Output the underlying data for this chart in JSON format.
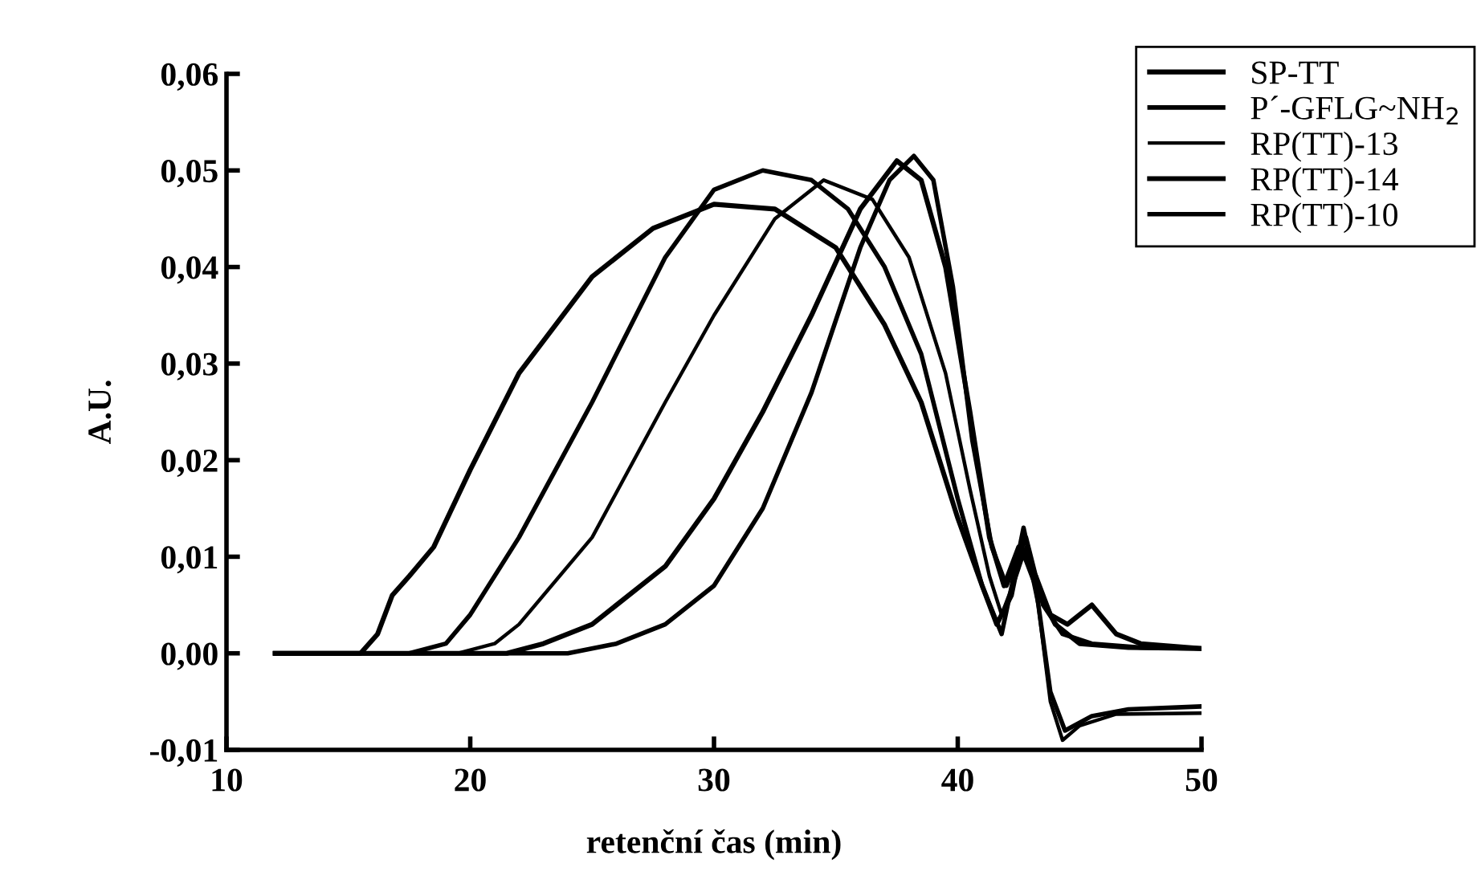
{
  "chart_data": {
    "type": "line",
    "xlabel": "retenční čas (min)",
    "ylabel": "A.U.",
    "xlim": [
      10,
      50
    ],
    "xticks": [
      10,
      20,
      30,
      40,
      50
    ],
    "ylim": [
      -0.01,
      0.06
    ],
    "yticks": [
      {
        "value": -0.01,
        "label": "-0,01"
      },
      {
        "value": 0,
        "label": "0,00"
      },
      {
        "value": 0.01,
        "label": "0,01"
      },
      {
        "value": 0.02,
        "label": "0,02"
      },
      {
        "value": 0.03,
        "label": "0,03"
      },
      {
        "value": 0.04,
        "label": "0,04"
      },
      {
        "value": 0.05,
        "label": "0,05"
      },
      {
        "value": 0.06,
        "label": "0,06"
      }
    ],
    "grid": false,
    "legend": "top right",
    "marker": "none",
    "line_style": "solid",
    "series": [
      {
        "name": "SP-TT",
        "color": "#000000",
        "x": [
          12,
          15.5,
          16.2,
          16.8,
          17.5,
          18.5,
          20,
          22,
          25,
          27.5,
          30,
          32.5,
          35,
          37,
          38.5,
          40,
          41,
          41.6,
          42.2,
          42.6,
          43.2,
          44,
          45,
          47,
          50
        ],
        "values": [
          0,
          0,
          0.002,
          0.006,
          0.008,
          0.011,
          0.019,
          0.029,
          0.039,
          0.044,
          0.0465,
          0.046,
          0.042,
          0.034,
          0.026,
          0.014,
          0.007,
          0.003,
          0.006,
          0.011,
          0.007,
          0.003,
          0.001,
          0.0006,
          0.0005
        ]
      },
      {
        "name": "P´-GFLG~NH$_{2}$",
        "color": "#000000",
        "x": [
          12,
          17.5,
          19,
          20,
          22,
          25,
          28,
          30,
          32,
          34,
          35.5,
          37,
          38.5,
          40,
          41,
          41.8,
          42.3,
          42.7,
          43.2,
          43.8,
          44.4,
          45.5,
          47,
          50
        ],
        "values": [
          0,
          0,
          0.001,
          0.004,
          0.012,
          0.026,
          0.041,
          0.048,
          0.05,
          0.049,
          0.046,
          0.04,
          0.031,
          0.016,
          0.007,
          0.002,
          0.008,
          0.013,
          0.007,
          -0.004,
          -0.008,
          -0.0065,
          -0.0058,
          -0.0055
        ]
      },
      {
        "name": "RP(TT)-13",
        "color": "#000000",
        "x": [
          12,
          19.5,
          21,
          22,
          25,
          28,
          30,
          32.5,
          34.5,
          36.5,
          38,
          39.5,
          40.5,
          41.3,
          41.8,
          42.4,
          42.8,
          43.3,
          43.8,
          44.3,
          45,
          46.5,
          50
        ],
        "values": [
          0,
          0,
          0.001,
          0.003,
          0.012,
          0.026,
          0.035,
          0.045,
          0.049,
          0.047,
          0.041,
          0.029,
          0.017,
          0.008,
          0.004,
          0.008,
          0.011,
          0.005,
          -0.005,
          -0.009,
          -0.0075,
          -0.0063,
          -0.0062
        ]
      },
      {
        "name": "RP(TT)-14",
        "color": "#000000",
        "x": [
          12,
          21.5,
          23,
          25,
          28,
          30,
          32,
          34,
          36,
          37.5,
          38.5,
          39.5,
          40.5,
          41.3,
          41.9,
          42.5,
          43.2,
          43.8,
          44.5,
          45.5,
          46.5,
          47.5,
          50
        ],
        "values": [
          0,
          0,
          0.001,
          0.003,
          0.009,
          0.016,
          0.025,
          0.035,
          0.046,
          0.051,
          0.049,
          0.04,
          0.025,
          0.012,
          0.007,
          0.011,
          0.008,
          0.004,
          0.003,
          0.005,
          0.002,
          0.001,
          0.0005
        ]
      },
      {
        "name": "RP(TT)-10",
        "color": "#000000",
        "x": [
          12,
          24,
          26,
          28,
          30,
          32,
          34,
          36,
          37.2,
          38.2,
          39,
          39.8,
          40.6,
          41.4,
          42,
          42.8,
          43.5,
          44.3,
          45.5,
          47.5,
          50
        ],
        "values": [
          0,
          0,
          0.001,
          0.003,
          0.007,
          0.015,
          0.027,
          0.042,
          0.049,
          0.0515,
          0.049,
          0.038,
          0.022,
          0.011,
          0.007,
          0.012,
          0.005,
          0.002,
          0.001,
          0.0006,
          0.0005
        ]
      }
    ]
  }
}
